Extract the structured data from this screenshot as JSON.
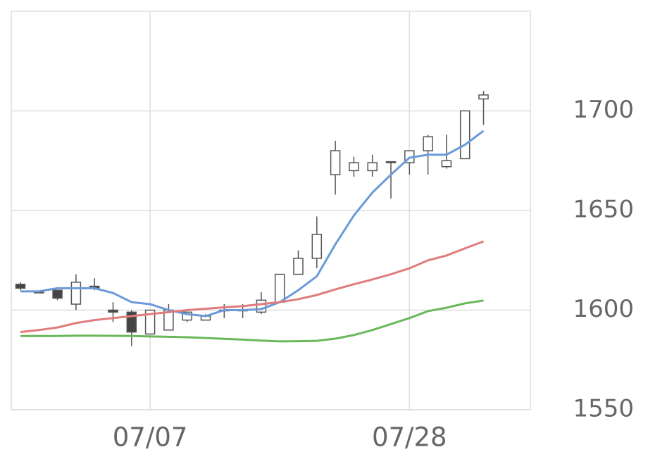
{
  "chart_data": {
    "type": "candlestick",
    "categories": [
      null,
      null,
      null,
      null,
      null,
      null,
      null,
      "07/07",
      null,
      null,
      null,
      null,
      null,
      null,
      null,
      null,
      null,
      null,
      null,
      null,
      null,
      "07/28",
      null,
      null,
      null,
      null
    ],
    "open": [
      1613,
      1609,
      1610,
      1603,
      1612,
      1600,
      1599,
      1588,
      1590,
      1595,
      1595,
      1600,
      1600,
      1599,
      1604,
      1618,
      1626,
      1668,
      1670,
      1670,
      1674.5,
      1674,
      1680,
      1672,
      1676,
      1706
    ],
    "high": [
      1614,
      1609.5,
      1610,
      1618,
      1616,
      1604,
      1600,
      1600,
      1603,
      1599,
      1598,
      1603,
      1603,
      1609,
      1618,
      1630,
      1647,
      1685,
      1677,
      1678,
      1674.5,
      1680,
      1688,
      1688,
      1700,
      1710
    ],
    "low": [
      1610,
      1609,
      1605,
      1600,
      1610,
      1594,
      1582,
      1588,
      1590,
      1594,
      1595,
      1596,
      1596,
      1598,
      1604,
      1618,
      1621,
      1658,
      1667,
      1667,
      1656,
      1668,
      1668,
      1671,
      1676,
      1693
    ],
    "close": [
      1611,
      1609,
      1606,
      1614,
      1611,
      1599,
      1589,
      1600,
      1600,
      1599,
      1597,
      1600,
      1600,
      1605,
      1618,
      1626,
      1638,
      1680,
      1674,
      1674,
      1674,
      1680,
      1687,
      1675,
      1700,
      1708
    ],
    "up_color": "#ffffff",
    "down_color": "#444444",
    "wick_color": "#555555",
    "lines": [
      {
        "color": "#6a9ad8",
        "values": [
          1609.4,
          1609.4,
          1611,
          1611,
          1611,
          1608.6,
          1604,
          1603,
          1600,
          1598,
          1597,
          1600,
          1600,
          1600.5,
          1604,
          1610,
          1617,
          1633,
          1647.5,
          1659,
          1668,
          1676.5,
          1678,
          1678,
          1683,
          1690
        ]
      },
      {
        "color": "#e07b7b",
        "values": [
          1589,
          1590,
          1591.3,
          1593.5,
          1595,
          1596,
          1597,
          1598,
          1599,
          1600,
          1600.7,
          1601.4,
          1602,
          1603,
          1604,
          1605.5,
          1607.6,
          1610.4,
          1613,
          1615.4,
          1618,
          1621,
          1625,
          1627.4,
          1631,
          1634.5
        ]
      },
      {
        "color": "#6ab85a",
        "values": [
          1587,
          1587,
          1587,
          1587.2,
          1587.2,
          1587.1,
          1587,
          1586.8,
          1586.6,
          1586.4,
          1586,
          1585.6,
          1585.2,
          1584.7,
          1584.3,
          1584.4,
          1584.6,
          1585.7,
          1587.5,
          1590,
          1593,
          1596,
          1599.5,
          1601.2,
          1603.4,
          1604.8
        ]
      }
    ],
    "ylim": [
      1550,
      1750
    ],
    "yticks": [
      1550,
      1600,
      1650,
      1700
    ],
    "grid": true
  }
}
